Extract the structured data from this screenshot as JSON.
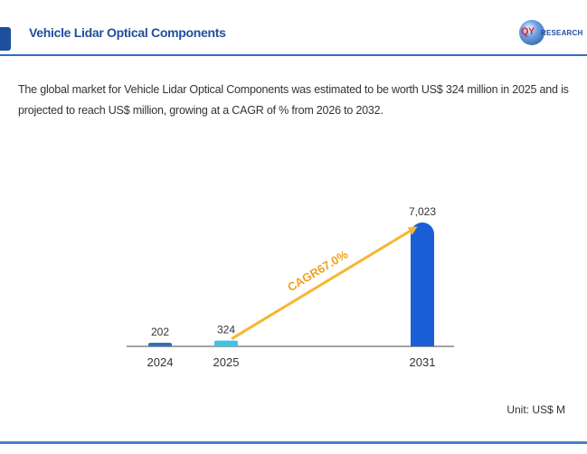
{
  "header": {
    "title": "Vehicle Lidar Optical Components",
    "logo_letters": "QY",
    "logo_word": "RESEARCH"
  },
  "description": "The global market for Vehicle Lidar Optical Components was estimated to be worth US$ 324 million in 2025 and is projected to reach US$ million, growing at a CAGR of % from 2026 to 2032.",
  "unit_label": "Unit: US$ M",
  "colors": {
    "accent": "#1f4e9c",
    "bar_2024": "#2e6fc4",
    "bar_2025": "#3ec3e6",
    "bar_2031": "#1a5fd6",
    "cagr_arrow": "#f5b731",
    "cagr_text": "#f0a020"
  },
  "chart_data": {
    "type": "bar",
    "categories": [
      "2024",
      "2025",
      "2031"
    ],
    "values": [
      202,
      324,
      7023
    ],
    "value_labels": [
      "202",
      "324",
      "7,023"
    ],
    "annotation": "CAGR67.0%",
    "title": "",
    "xlabel": "",
    "ylabel": "",
    "ylim": [
      0,
      7023
    ]
  }
}
